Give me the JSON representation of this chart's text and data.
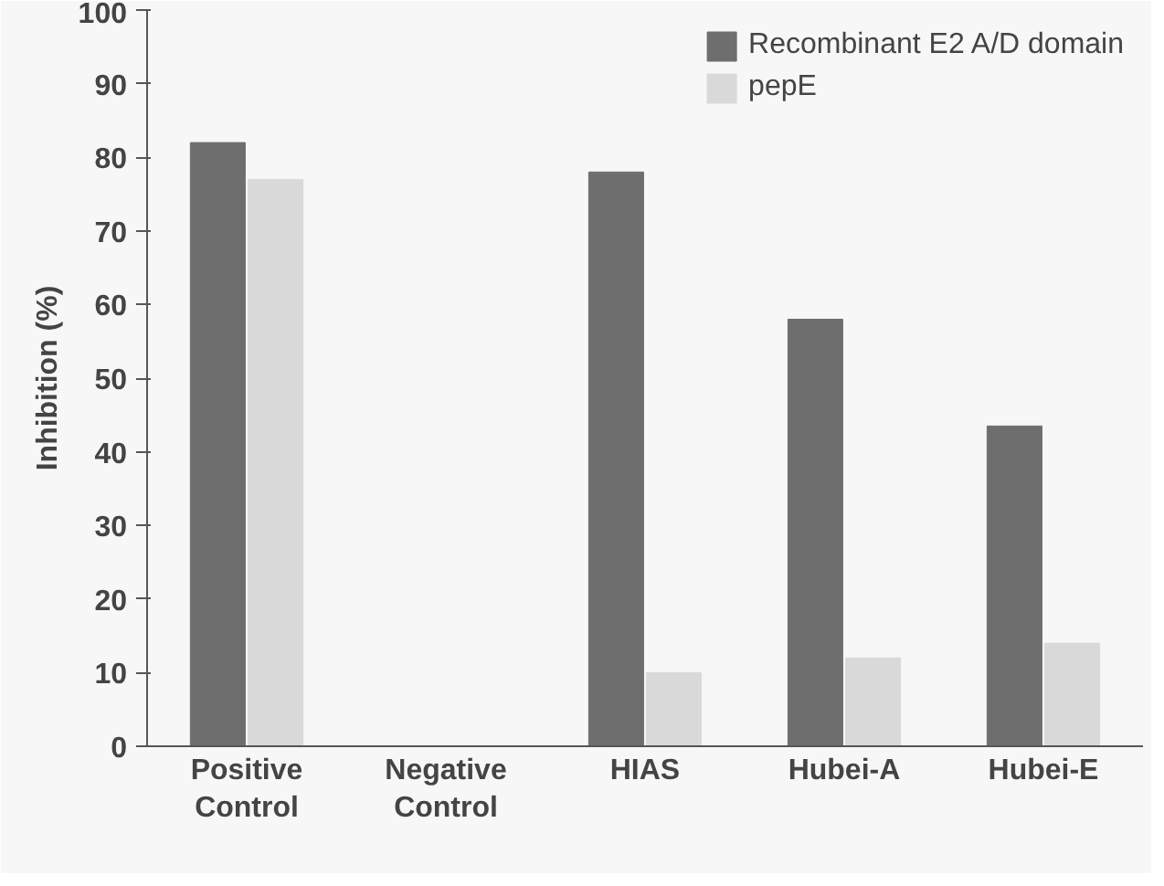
{
  "chart_data": {
    "type": "bar",
    "ylabel": "Inhibition (%)",
    "categories": [
      "Positive Control",
      "Negative Control",
      "HIAS",
      "Hubei-A",
      "Hubei-E"
    ],
    "series": [
      {
        "name": "Recombinant E2 A/D domain",
        "color": "#6e6e6e",
        "values": [
          82,
          0,
          78,
          58,
          43.5
        ]
      },
      {
        "name": "pepE",
        "color": "#d9d9d9",
        "values": [
          77,
          0,
          10,
          12,
          14
        ]
      }
    ],
    "ylim": [
      0,
      100
    ],
    "yticks": [
      0,
      10,
      20,
      30,
      40,
      50,
      60,
      70,
      80,
      90,
      100
    ],
    "grid": false,
    "legend": "top right"
  }
}
